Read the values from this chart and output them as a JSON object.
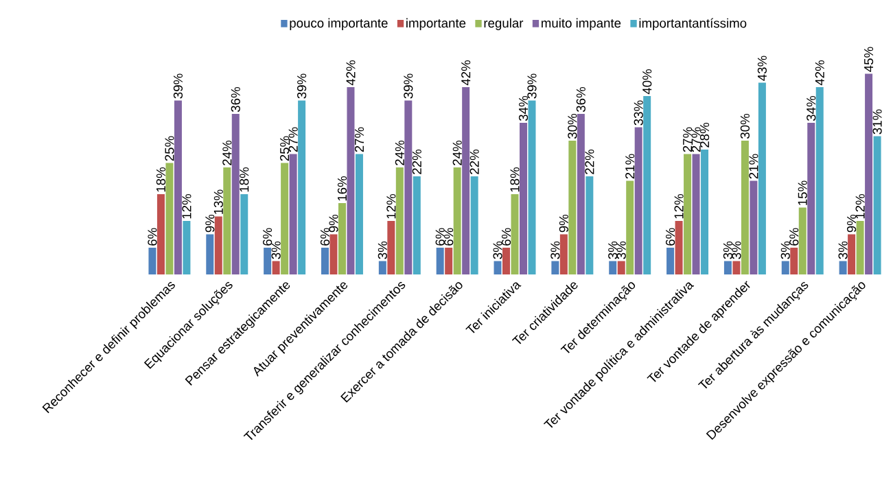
{
  "chart_data": {
    "type": "bar",
    "legend": "top",
    "categories": [
      "Reconhecer e definir problemas",
      "Equacionar soluções",
      "Pensar estrategicamente",
      "Atuar preventivamente",
      "Transferir e generalizar conhecimentos",
      "Exercer a tomada de decisão",
      "Ter iniciativa",
      "Ter criatividade",
      "Ter determinação",
      "Ter vontade política e administrativa",
      "Ter vontade de aprender",
      "Ter abertura às mudanças",
      "Desenvolve expressão e comunicação"
    ],
    "series": [
      {
        "name": "pouco importante",
        "color": "#4f81bd",
        "values": [
          6,
          9,
          6,
          6,
          3,
          6,
          3,
          3,
          3,
          6,
          3,
          3,
          3
        ],
        "value_labels": [
          "6%",
          "9%",
          "6%",
          "6%",
          "3%",
          "6%",
          "3%",
          "3%",
          "3%",
          "6%",
          "3%",
          "3%",
          "3%"
        ]
      },
      {
        "name": "importante",
        "color": "#c0504d",
        "values": [
          18,
          13,
          3,
          9,
          12,
          6,
          6,
          9,
          3,
          12,
          3,
          6,
          9
        ],
        "value_labels": [
          "18%",
          "13%",
          "3%",
          "9%",
          "12%",
          "6%",
          "6%",
          "9%",
          "3%",
          "12%",
          "3%",
          "6%",
          "9%"
        ]
      },
      {
        "name": "regular",
        "color": "#9bbb59",
        "values": [
          25,
          24,
          25,
          16,
          24,
          24,
          18,
          30,
          21,
          27,
          30,
          15,
          12
        ],
        "value_labels": [
          "25%",
          "24%",
          "25%",
          "16%",
          "24%",
          "24%",
          "18%",
          "30%",
          "21%",
          "27%",
          "30%",
          "15%",
          "12%"
        ]
      },
      {
        "name": "muito impante",
        "color": "#8064a2",
        "values": [
          39,
          36,
          27,
          42,
          39,
          42,
          34,
          36,
          33,
          27,
          21,
          34,
          45
        ],
        "value_labels": [
          "39%",
          "36%",
          "27%",
          "42%",
          "39%",
          "42%",
          "34%",
          "36%",
          "33%",
          "27%",
          "21%",
          "34%",
          "45%"
        ]
      },
      {
        "name": "importantantíssimo",
        "color": "#4bacc6",
        "values": [
          12,
          18,
          39,
          27,
          22,
          22,
          39,
          22,
          40,
          28,
          43,
          42,
          31
        ],
        "value_labels": [
          "12%",
          "18%",
          "39%",
          "27%",
          "22%",
          "22%",
          "39%",
          "22%",
          "40%",
          "28%",
          "43%",
          "42%",
          "31%"
        ]
      }
    ]
  }
}
